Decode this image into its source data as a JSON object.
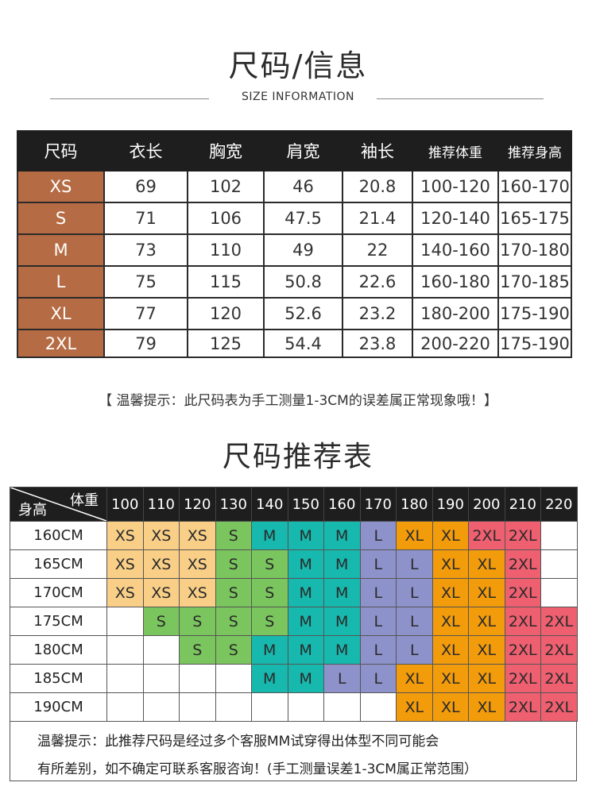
{
  "header": {
    "title": "尺码/信息",
    "subtitle": "SIZE INFORMATION"
  },
  "size_table": {
    "columns": [
      "尺码",
      "衣长",
      "胸宽",
      "肩宽",
      "袖长",
      "推荐体重",
      "推荐身高"
    ],
    "rows": [
      [
        "XS",
        "69",
        "102",
        "46",
        "20.8",
        "100-120",
        "160-170"
      ],
      [
        "S",
        "71",
        "106",
        "47.5",
        "21.4",
        "120-140",
        "165-175"
      ],
      [
        "M",
        "73",
        "110",
        "49",
        "22",
        "140-160",
        "170-180"
      ],
      [
        "L",
        "75",
        "115",
        "50.8",
        "22.6",
        "160-180",
        "170-185"
      ],
      [
        "XL",
        "77",
        "120",
        "52.6",
        "23.2",
        "180-200",
        "175-190"
      ],
      [
        "2XL",
        "79",
        "125",
        "54.4",
        "23.8",
        "200-220",
        "175-190"
      ]
    ],
    "size_color": "#b56b43"
  },
  "note1": "【 温馨提示：此尺码表为手工测量1-3CM的误差属正常现象哦！】",
  "recommend": {
    "title": "尺码推荐表",
    "corner_weight": "体重",
    "corner_height": "身高",
    "weights": [
      "100",
      "110",
      "120",
      "130",
      "140",
      "150",
      "160",
      "170",
      "180",
      "190",
      "200",
      "210",
      "220"
    ],
    "rows": [
      {
        "height": "160CM",
        "cells": [
          "XS",
          "XS",
          "XS",
          "S",
          "M",
          "M",
          "M",
          "L",
          "XL",
          "XL",
          "2XL",
          "2XL",
          ""
        ]
      },
      {
        "height": "165CM",
        "cells": [
          "XS",
          "XS",
          "XS",
          "S",
          "S",
          "M",
          "M",
          "L",
          "L",
          "XL",
          "XL",
          "2XL",
          ""
        ]
      },
      {
        "height": "170CM",
        "cells": [
          "XS",
          "XS",
          "XS",
          "S",
          "S",
          "M",
          "M",
          "L",
          "L",
          "XL",
          "XL",
          "2XL",
          ""
        ]
      },
      {
        "height": "175CM",
        "cells": [
          "",
          "S",
          "S",
          "S",
          "S",
          "M",
          "M",
          "L",
          "L",
          "XL",
          "XL",
          "2XL",
          "2XL"
        ]
      },
      {
        "height": "180CM",
        "cells": [
          "",
          "",
          "S",
          "S",
          "M",
          "M",
          "M",
          "L",
          "L",
          "XL",
          "XL",
          "2XL",
          "2XL"
        ]
      },
      {
        "height": "185CM",
        "cells": [
          "",
          "",
          "",
          "",
          "M",
          "M",
          "L",
          "L",
          "XL",
          "XL",
          "XL",
          "2XL",
          "2XL"
        ]
      },
      {
        "height": "190CM",
        "cells": [
          "",
          "",
          "",
          "",
          "",
          "",
          "",
          "",
          "XL",
          "XL",
          "XL",
          "2XL",
          "2XL"
        ]
      }
    ],
    "colors": {
      "XS": "#f9cf87",
      "S": "#7bc55e",
      "M": "#17b8ad",
      "L": "#8e92cb",
      "XL": "#f29b0b",
      "2XL": "#ee5f70"
    },
    "note_line1": "温馨提示：此推荐尺码是经过多个客服MM试穿得出体型不同可能会",
    "note_line2": "有所差别，如不确定可联系客服咨询！(手工测量误差1-3CM属正常范围）"
  }
}
